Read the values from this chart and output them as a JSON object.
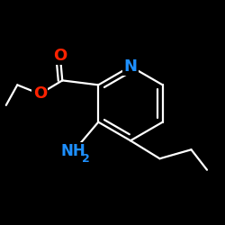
{
  "background_color": "#000000",
  "bond_color": "#ffffff",
  "N_color": "#1E90FF",
  "O_color": "#FF2200",
  "bond_width": 1.6,
  "font_size_N": 13,
  "font_size_O": 13,
  "font_size_NH2": 12,
  "fig_width": 2.5,
  "fig_height": 2.5,
  "dpi": 100,
  "xlim": [
    0.0,
    1.0
  ],
  "ylim": [
    0.0,
    1.0
  ]
}
